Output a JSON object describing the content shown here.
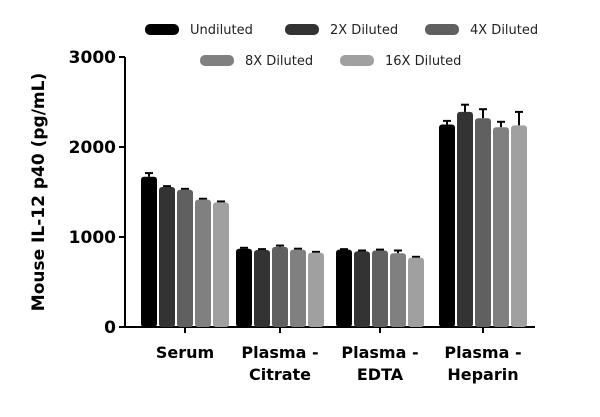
{
  "chart_data": {
    "type": "bar",
    "ylabel": "Mouse IL-12 p40 (pg/mL)",
    "xlabel": "",
    "ylim": [
      0,
      3000
    ],
    "yticks": [
      0,
      1000,
      2000,
      3000
    ],
    "grid": false,
    "legend_placement": "top",
    "categories": [
      [
        "Serum"
      ],
      [
        "Plasma -",
        "Citrate"
      ],
      [
        "Plasma -",
        "EDTA"
      ],
      [
        "Plasma -",
        "Heparin"
      ]
    ],
    "series": [
      {
        "name": "Undiluted",
        "color": "#000000",
        "values": [
          1670,
          870,
          860,
          2250
        ],
        "errors": [
          40,
          10,
          5,
          40
        ]
      },
      {
        "name": "2X Diluted",
        "color": "#333333",
        "values": [
          1555,
          855,
          840,
          2390
        ],
        "errors": [
          10,
          10,
          10,
          80
        ]
      },
      {
        "name": "4X Diluted",
        "color": "#606060",
        "values": [
          1525,
          890,
          850,
          2320
        ],
        "errors": [
          10,
          15,
          10,
          100
        ]
      },
      {
        "name": "8X Diluted",
        "color": "#808080",
        "values": [
          1415,
          860,
          820,
          2220
        ],
        "errors": [
          10,
          10,
          30,
          60
        ]
      },
      {
        "name": "16X Diluted",
        "color": "#a0a0a0",
        "values": [
          1385,
          825,
          770,
          2240
        ],
        "errors": [
          10,
          10,
          10,
          150
        ]
      }
    ]
  }
}
